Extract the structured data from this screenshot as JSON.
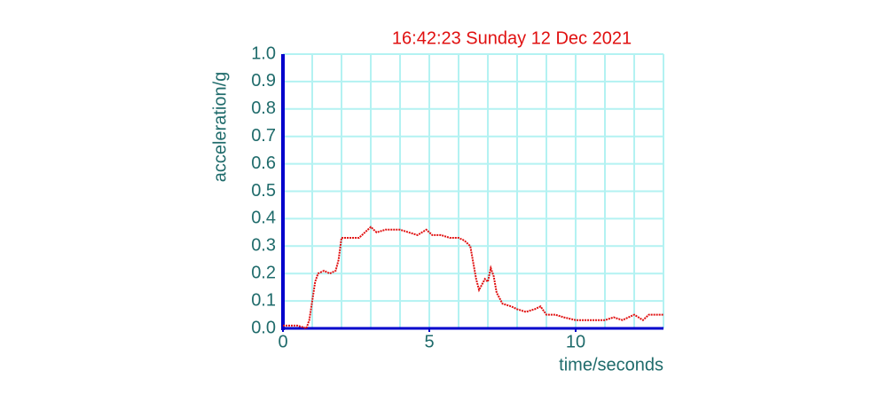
{
  "chart_data": {
    "type": "line",
    "title": "16:42:23 Sunday 12 Dec 2021",
    "xlabel": "time/seconds",
    "ylabel": "acceleration/g",
    "xlim": [
      0,
      13
    ],
    "ylim": [
      0,
      1
    ],
    "xticks": [
      0,
      5,
      10
    ],
    "xgrid": [
      1,
      2,
      3,
      4,
      5,
      6,
      7,
      8,
      9,
      10,
      11,
      12,
      13
    ],
    "yticks": [
      {
        "value": 0,
        "label": "0.0"
      },
      0.1,
      0.2,
      0.3,
      0.4,
      0.5,
      0.6,
      0.7,
      0.8,
      0.9,
      {
        "value": 1,
        "label": "1.0"
      }
    ],
    "grid": true,
    "grid_color": "#b3f2f2",
    "axis_color": "#0000cc",
    "series": [
      {
        "color": "#e01010",
        "x": [
          0,
          0.5,
          0.8,
          0.9,
          1.0,
          1.1,
          1.2,
          1.4,
          1.6,
          1.8,
          1.9,
          2.0,
          2.3,
          2.6,
          2.8,
          3.0,
          3.2,
          3.5,
          3.8,
          4.0,
          4.3,
          4.6,
          4.9,
          5.1,
          5.4,
          5.7,
          6.0,
          6.2,
          6.4,
          6.5,
          6.6,
          6.7,
          6.8,
          6.9,
          7.0,
          7.1,
          7.2,
          7.3,
          7.5,
          7.8,
          8.0,
          8.3,
          8.6,
          8.8,
          9.0,
          9.3,
          9.6,
          10.0,
          10.5,
          11.0,
          11.3,
          11.6,
          12.0,
          12.3,
          12.5,
          12.8,
          13.0
        ],
        "values": [
          0.01,
          0.01,
          0.0,
          0.03,
          0.1,
          0.17,
          0.2,
          0.21,
          0.2,
          0.21,
          0.25,
          0.33,
          0.33,
          0.33,
          0.35,
          0.37,
          0.35,
          0.36,
          0.36,
          0.36,
          0.35,
          0.34,
          0.36,
          0.34,
          0.34,
          0.33,
          0.33,
          0.32,
          0.3,
          0.24,
          0.18,
          0.14,
          0.16,
          0.18,
          0.17,
          0.22,
          0.19,
          0.13,
          0.09,
          0.08,
          0.07,
          0.06,
          0.07,
          0.08,
          0.05,
          0.05,
          0.04,
          0.03,
          0.03,
          0.03,
          0.04,
          0.03,
          0.05,
          0.03,
          0.05,
          0.05,
          0.05
        ]
      }
    ]
  }
}
